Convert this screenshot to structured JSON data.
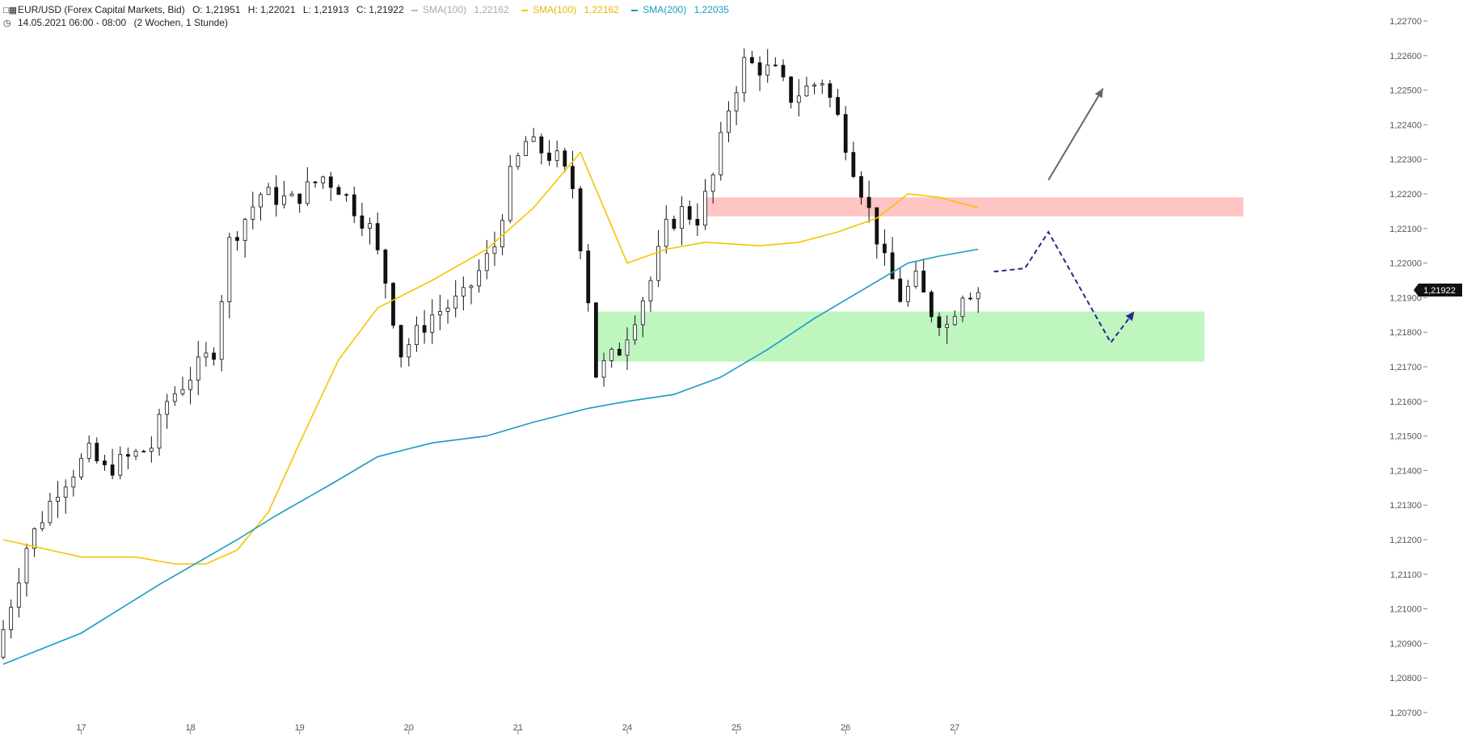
{
  "header": {
    "symbol": "EUR/USD (Forex Capital Markets, Bid)",
    "open": "O: 1,21951",
    "high": "H: 1,22021",
    "low": "L: 1,21913",
    "close": "C: 1,21922",
    "ind1_name": "SMA(100)",
    "ind1_value": "1,22162",
    "ind2_name": "SMA(100)",
    "ind2_value": "1,22162",
    "ind3_name": "SMA(200)",
    "ind3_value": "1,22035",
    "timeframe": "14.05.2021 06:00 - 08:00",
    "range": "(2 Wochen, 1 Stunde)"
  },
  "colors": {
    "sma100": "#f5c400",
    "sma100_muted": "#b8b8b8",
    "sma200": "#1a9bc4",
    "resistance_zone": "#ffc4c4",
    "support_zone": "#bff5bf",
    "projection": "#2a2a8a",
    "arrow_up": "#666666",
    "price_label_bg": "#111111"
  },
  "price_label": "1,21922",
  "chart_data": {
    "type": "candlestick",
    "title": "EUR/USD (Forex Capital Markets, Bid)",
    "y_ticks": [
      "1,22700",
      "1,22600",
      "1,22500",
      "1,22400",
      "1,22300",
      "1,22200",
      "1,22100",
      "1,22000",
      "1,21900",
      "1,21800",
      "1,21700",
      "1,21600",
      "1,21500",
      "1,21400",
      "1,21300",
      "1,21200",
      "1,21100",
      "1,21000",
      "1,20900",
      "1,20800",
      "1,20700"
    ],
    "ylim": [
      1.207,
      1.227
    ],
    "x_ticks": [
      "17",
      "18",
      "19",
      "20",
      "21",
      "24",
      "25",
      "26",
      "27"
    ],
    "trend": [
      [
        0,
        1.2086
      ],
      [
        4,
        1.2118
      ],
      [
        8,
        1.2135
      ],
      [
        12,
        1.2145
      ],
      [
        14,
        1.214
      ],
      [
        20,
        1.2147
      ],
      [
        22,
        1.216
      ],
      [
        28,
        1.2175
      ],
      [
        30,
        1.2206
      ],
      [
        34,
        1.222
      ],
      [
        38,
        1.2218
      ],
      [
        42,
        1.2225
      ],
      [
        44,
        1.2222
      ],
      [
        48,
        1.221
      ],
      [
        50,
        1.2195
      ],
      [
        52,
        1.2174
      ],
      [
        56,
        1.2185
      ],
      [
        60,
        1.219
      ],
      [
        64,
        1.2205
      ],
      [
        66,
        1.2225
      ],
      [
        68,
        1.2235
      ],
      [
        72,
        1.223
      ],
      [
        74,
        1.2222
      ],
      [
        76,
        1.219
      ],
      [
        77,
        1.2168
      ],
      [
        80,
        1.2175
      ],
      [
        84,
        1.2195
      ],
      [
        86,
        1.221
      ],
      [
        88,
        1.2215
      ],
      [
        90,
        1.2213
      ],
      [
        92,
        1.2225
      ],
      [
        94,
        1.2245
      ],
      [
        96,
        1.2258
      ],
      [
        100,
        1.2255
      ],
      [
        102,
        1.2248
      ],
      [
        106,
        1.2253
      ],
      [
        108,
        1.2242
      ],
      [
        110,
        1.2228
      ],
      [
        112,
        1.2215
      ],
      [
        114,
        1.22
      ],
      [
        116,
        1.219
      ],
      [
        118,
        1.2195
      ],
      [
        120,
        1.2186
      ],
      [
        122,
        1.2182
      ],
      [
        124,
        1.2192
      ],
      [
        125,
        1.2192
      ]
    ],
    "series": [
      {
        "name": "SMA(100)",
        "color": "#f5c400",
        "x": [
          0,
          10,
          17,
          22,
          26,
          30,
          34,
          38,
          43,
          48,
          55,
          62,
          68,
          74,
          80,
          85,
          90,
          97,
          102,
          107,
          112,
          116,
          120,
          125
        ],
        "y": [
          1.212,
          1.2115,
          1.2115,
          1.2113,
          1.2113,
          1.2117,
          1.2128,
          1.2148,
          1.2172,
          1.2187,
          1.2195,
          1.2204,
          1.2216,
          1.2232,
          1.22,
          1.2204,
          1.2206,
          1.2205,
          1.2206,
          1.2209,
          1.2213,
          1.222,
          1.2219,
          1.2216
        ]
      },
      {
        "name": "SMA(200)",
        "color": "#1a9bc4",
        "x": [
          0,
          10,
          20,
          30,
          35,
          42,
          48,
          55,
          62,
          68,
          75,
          80,
          86,
          92,
          98,
          104,
          110,
          116,
          120,
          125
        ],
        "y": [
          1.2084,
          1.2093,
          1.2107,
          1.212,
          1.2127,
          1.2136,
          1.2144,
          1.2148,
          1.215,
          1.2154,
          1.2158,
          1.216,
          1.2162,
          1.2167,
          1.2175,
          1.2184,
          1.2192,
          1.22,
          1.2202,
          1.2204
        ]
      }
    ],
    "zones": [
      {
        "name": "resistance",
        "x": [
          90,
          159
        ],
        "y": [
          1.22135,
          1.2219
        ]
      },
      {
        "name": "support",
        "x": [
          76,
          154
        ],
        "y": [
          1.21715,
          1.2186
        ]
      }
    ],
    "projection_dashed": [
      [
        127,
        1.21975
      ],
      [
        131,
        1.21985
      ],
      [
        134,
        1.2209
      ],
      [
        142,
        1.2177
      ],
      [
        145,
        1.2186
      ]
    ],
    "projection_arrow_up": [
      [
        134,
        1.2224
      ],
      [
        141,
        1.22505
      ]
    ]
  }
}
